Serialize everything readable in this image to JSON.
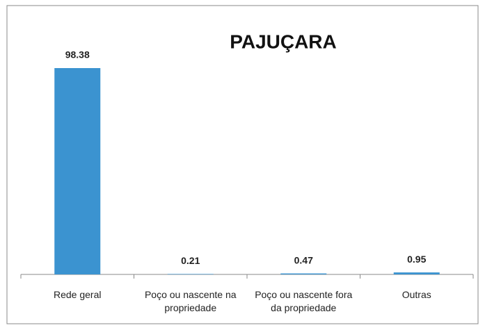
{
  "chart_data": {
    "type": "bar",
    "title": "PAJUÇARA",
    "categories": [
      "Rede geral",
      "Poço ou nascente na propriedade",
      "Poço ou nascente fora da propriedade",
      "Outras"
    ],
    "values": [
      98.38,
      0.21,
      0.47,
      0.95
    ],
    "color": "#3b93d0"
  }
}
